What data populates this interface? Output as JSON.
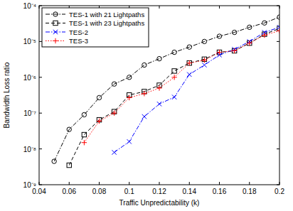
{
  "chart_data": {
    "type": "line",
    "x_label": "Traffic Unpredictability (k)",
    "y_label": "Bandwidth Loss ratio",
    "log": "y",
    "grid": false,
    "legend": "top-left",
    "xlim": [
      0.04,
      0.2
    ],
    "xticks": [
      0.04,
      0.06,
      0.08,
      0.1,
      0.12,
      0.14,
      0.16,
      0.18,
      0.2
    ],
    "ylim": [
      1e-09,
      0.0001
    ],
    "yticks": [
      {
        "value": 1e-09,
        "label": "10⁻⁹"
      },
      {
        "value": 1e-08,
        "label": "10⁻⁸"
      },
      {
        "value": 1e-07,
        "label": "10⁻⁷"
      },
      {
        "value": 1e-06,
        "label": "10⁻⁶"
      },
      {
        "value": 1e-05,
        "label": "10⁻⁵"
      },
      {
        "value": 0.0001,
        "label": "10⁻⁴"
      }
    ],
    "series": [
      {
        "name": "TES-1 with 21 Lightpaths",
        "color": "#000000",
        "marker": "circle",
        "line_style": "dashdot",
        "x": [
          0.05,
          0.06,
          0.07,
          0.08,
          0.09,
          0.1,
          0.11,
          0.12,
          0.13,
          0.14,
          0.15,
          0.16,
          0.17,
          0.18,
          0.19,
          0.2
        ],
        "values": [
          4.5e-09,
          3.5e-08,
          9e-08,
          2.7e-07,
          6.5e-07,
          1e-06,
          2.2e-06,
          3.3e-06,
          5e-06,
          7e-06,
          1e-05,
          1.4e-05,
          1.8e-05,
          2.5e-05,
          3.3e-05,
          4.8e-05
        ]
      },
      {
        "name": "TES-1 with 23 Lightpaths",
        "color": "#000000",
        "marker": "square",
        "line_style": "dashed",
        "x": [
          0.06,
          0.07,
          0.08,
          0.09,
          0.1,
          0.11,
          0.12,
          0.13,
          0.14,
          0.15,
          0.16,
          0.17,
          0.18,
          0.19,
          0.2
        ],
        "values": [
          3.5e-09,
          2.5e-08,
          6.5e-08,
          1.1e-07,
          3.2e-07,
          4e-07,
          6e-07,
          1.5e-06,
          2.5e-06,
          3.2e-06,
          5e-06,
          5.5e-06,
          9e-06,
          1.6e-05,
          2.3e-05
        ]
      },
      {
        "name": "TES-2",
        "color": "#0000ff",
        "marker": "x",
        "line_style": "dashdot",
        "x": [
          0.09,
          0.1,
          0.11,
          0.12,
          0.13,
          0.14,
          0.15,
          0.16,
          0.17,
          0.18,
          0.19,
          0.2
        ],
        "values": [
          8e-09,
          1.6e-08,
          8e-08,
          1.8e-07,
          2.8e-07,
          1.2e-06,
          2.2e-06,
          4.2e-06,
          6e-06,
          1e-05,
          1.8e-05,
          2.5e-05
        ]
      },
      {
        "name": "TES-3",
        "color": "#ff0000",
        "marker": "plus",
        "line_style": "dotted",
        "x": [
          0.07,
          0.08,
          0.09,
          0.1,
          0.11,
          0.12,
          0.13,
          0.14,
          0.15,
          0.16,
          0.17,
          0.18,
          0.19,
          0.2
        ],
        "values": [
          1.5e-08,
          6e-08,
          1e-07,
          2.7e-07,
          3.5e-07,
          5e-07,
          1e-06,
          2.5e-06,
          3e-06,
          5e-06,
          5.5e-06,
          9e-06,
          1.5e-05,
          2e-05
        ]
      }
    ]
  }
}
